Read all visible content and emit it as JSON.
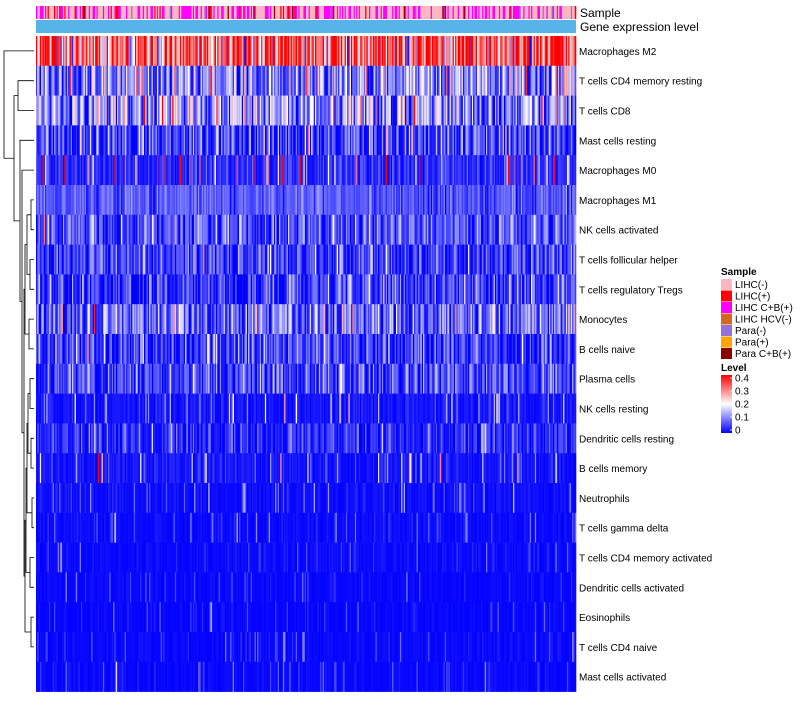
{
  "chart_data": {
    "type": "heatmap",
    "title": "",
    "annotation_tracks": [
      "Sample",
      "Gene expression level"
    ],
    "rows": [
      {
        "label": "Macrophages M2",
        "mean": 0.33,
        "spread": 0.09,
        "dist": "hot"
      },
      {
        "label": "T cells CD4 memory resting",
        "mean": 0.1,
        "spread": 0.06,
        "dist": "wide"
      },
      {
        "label": "T cells CD8",
        "mean": 0.12,
        "spread": 0.07,
        "dist": "wide"
      },
      {
        "label": "Mast cells resting",
        "mean": 0.05,
        "spread": 0.05,
        "dist": "wide"
      },
      {
        "label": "Macrophages M0",
        "mean": 0.05,
        "spread": 0.07,
        "dist": "sparse"
      },
      {
        "label": "Macrophages M1",
        "mean": 0.07,
        "spread": 0.03,
        "dist": "narrow"
      },
      {
        "label": "NK cells activated",
        "mean": 0.06,
        "spread": 0.04,
        "dist": "wide"
      },
      {
        "label": "T cells follicular helper",
        "mean": 0.05,
        "spread": 0.04,
        "dist": "wide"
      },
      {
        "label": "T cells regulatory  Tregs",
        "mean": 0.04,
        "spread": 0.04,
        "dist": "wide"
      },
      {
        "label": "Monocytes",
        "mean": 0.08,
        "spread": 0.05,
        "dist": "wide"
      },
      {
        "label": "B cells naive",
        "mean": 0.04,
        "spread": 0.04,
        "dist": "wide"
      },
      {
        "label": "Plasma cells",
        "mean": 0.05,
        "spread": 0.04,
        "dist": "wide"
      },
      {
        "label": "NK cells resting",
        "mean": 0.02,
        "spread": 0.03,
        "dist": "sparse"
      },
      {
        "label": "Dendritic cells resting",
        "mean": 0.03,
        "spread": 0.03,
        "dist": "wide"
      },
      {
        "label": "B cells memory",
        "mean": 0.02,
        "spread": 0.03,
        "dist": "sparse"
      },
      {
        "label": "Neutrophils",
        "mean": 0.01,
        "spread": 0.02,
        "dist": "sparse"
      },
      {
        "label": "T cells gamma delta",
        "mean": 0.01,
        "spread": 0.015,
        "dist": "sparse"
      },
      {
        "label": "T cells CD4 memory activated",
        "mean": 0.01,
        "spread": 0.015,
        "dist": "sparse"
      },
      {
        "label": "Dendritic cells activated",
        "mean": 0.005,
        "spread": 0.012,
        "dist": "sparse"
      },
      {
        "label": "Eosinophils",
        "mean": 0.003,
        "spread": 0.01,
        "dist": "sparse"
      },
      {
        "label": "T cells CD4 naive",
        "mean": 0.005,
        "spread": 0.012,
        "dist": "sparse"
      },
      {
        "label": "Mast cells activated",
        "mean": 0.004,
        "spread": 0.012,
        "dist": "sparse"
      }
    ],
    "n_samples": 420,
    "sample_track_probs": [
      0.55,
      0.07,
      0.33,
      0.0,
      0.03,
      0.0,
      0.02
    ],
    "gene_expression_level_color": "#56B4E9",
    "legend_sample": {
      "title": "Sample",
      "items": [
        {
          "label": "LIHC(-)",
          "color": "#FFB6C1"
        },
        {
          "label": "LIHC(+)",
          "color": "#FF0000"
        },
        {
          "label": "LIHC C+B(+)",
          "color": "#FF00FF"
        },
        {
          "label": "LIHC HCV(-)",
          "color": "#D2691E"
        },
        {
          "label": "Para(-)",
          "color": "#9370DB"
        },
        {
          "label": "Para(+)",
          "color": "#FFA500"
        },
        {
          "label": "Para C+B(+)",
          "color": "#8B0000"
        }
      ]
    },
    "legend_level": {
      "title": "Level",
      "ticks": [
        "0.4",
        "0.3",
        "0.2",
        "0.1",
        "0"
      ],
      "range": [
        0,
        0.4
      ],
      "colors": {
        "low": "#0000FF",
        "mid": "#FFFFFF",
        "high": "#FF0000",
        "mid_value": 0.2
      }
    }
  }
}
